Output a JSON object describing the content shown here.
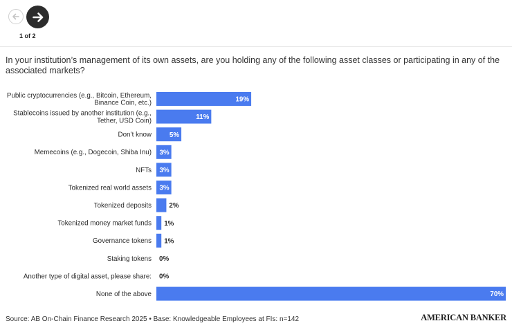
{
  "nav": {
    "prev_icon": "arrow-left-icon",
    "next_icon": "arrow-right-icon",
    "pager": "1 of 2"
  },
  "question": "In your institution’s management of its own assets, are you holding any of the following asset classes or participating in any of the associated markets?",
  "footer": {
    "source": "Source: AB On-Chain Finance Research 2025 • Base: Knowledgeable Employees at FIs: n=142",
    "brand": "AMERICAN BANKER"
  },
  "colors": {
    "bar": "#4a7bef",
    "text": "#2b2b2b"
  },
  "chart_data": {
    "type": "bar",
    "orientation": "horizontal",
    "categories": [
      [
        "Public cryptocurrencies (e.g., Bitcoin, Ethereum,",
        "Binance Coin, etc.)"
      ],
      [
        "Stablecoins issued by another institution (e.g.,",
        "Tether, USD Coin)"
      ],
      [
        "Don’t know"
      ],
      [
        "Memecoins (e.g., Dogecoin, Shiba Inu)"
      ],
      [
        "NFTs"
      ],
      [
        "Tokenized real world assets"
      ],
      [
        "Tokenized deposits"
      ],
      [
        "Tokenized money market funds"
      ],
      [
        "Governance tokens"
      ],
      [
        "Staking tokens"
      ],
      [
        "Another type of digital asset, please share:"
      ],
      [
        "None of the above"
      ]
    ],
    "values": [
      19,
      11,
      5,
      3,
      3,
      3,
      2,
      1,
      1,
      0,
      0,
      70
    ],
    "value_labels": [
      "19%",
      "11%",
      "5%",
      "3%",
      "3%",
      "3%",
      "2%",
      "1%",
      "1%",
      "0%",
      "0%",
      "70%"
    ],
    "unit": "%",
    "xlim": [
      0,
      70
    ],
    "grid": false,
    "legend": "none"
  }
}
